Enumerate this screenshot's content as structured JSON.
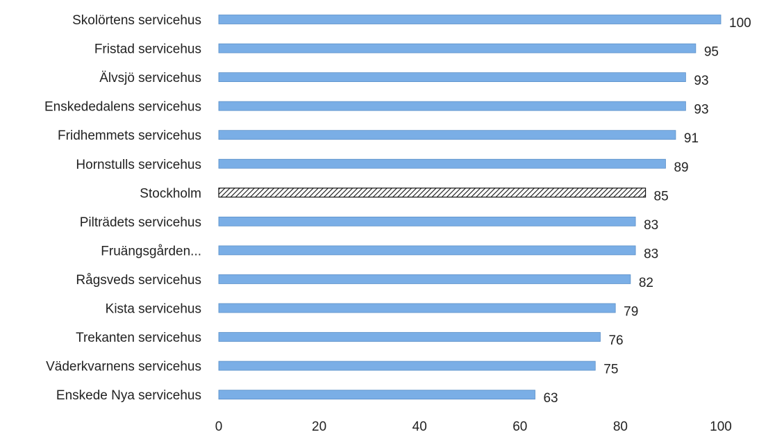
{
  "chart_data": {
    "type": "bar",
    "orientation": "horizontal",
    "title": "",
    "xlabel": "",
    "ylabel": "",
    "xlim": [
      0,
      100
    ],
    "xticks": [
      0,
      20,
      40,
      60,
      80,
      100
    ],
    "grid": false,
    "legend": "none",
    "colors": {
      "bar_fill": "#7aaee6",
      "bar_edge": "#5a8fc8",
      "highlight_edge": "#111111"
    },
    "highlight_category": "Stockholm",
    "highlight_pattern": "diagonal-hatch",
    "categories": [
      "Skolörtens servicehus",
      "Fristad servicehus",
      "Älvsjö servicehus",
      "Enskededalens servicehus",
      "Fridhemmets servicehus",
      "Hornstulls servicehus",
      "Stockholm",
      "Pilträdets servicehus",
      "Fruängsgården...",
      "Rågsveds servicehus",
      "Kista servicehus",
      "Trekanten servicehus",
      "Väderkvarnens servicehus",
      "Enskede Nya servicehus"
    ],
    "values": [
      100,
      95,
      93,
      93,
      91,
      89,
      85,
      83,
      83,
      82,
      79,
      76,
      75,
      63
    ]
  }
}
